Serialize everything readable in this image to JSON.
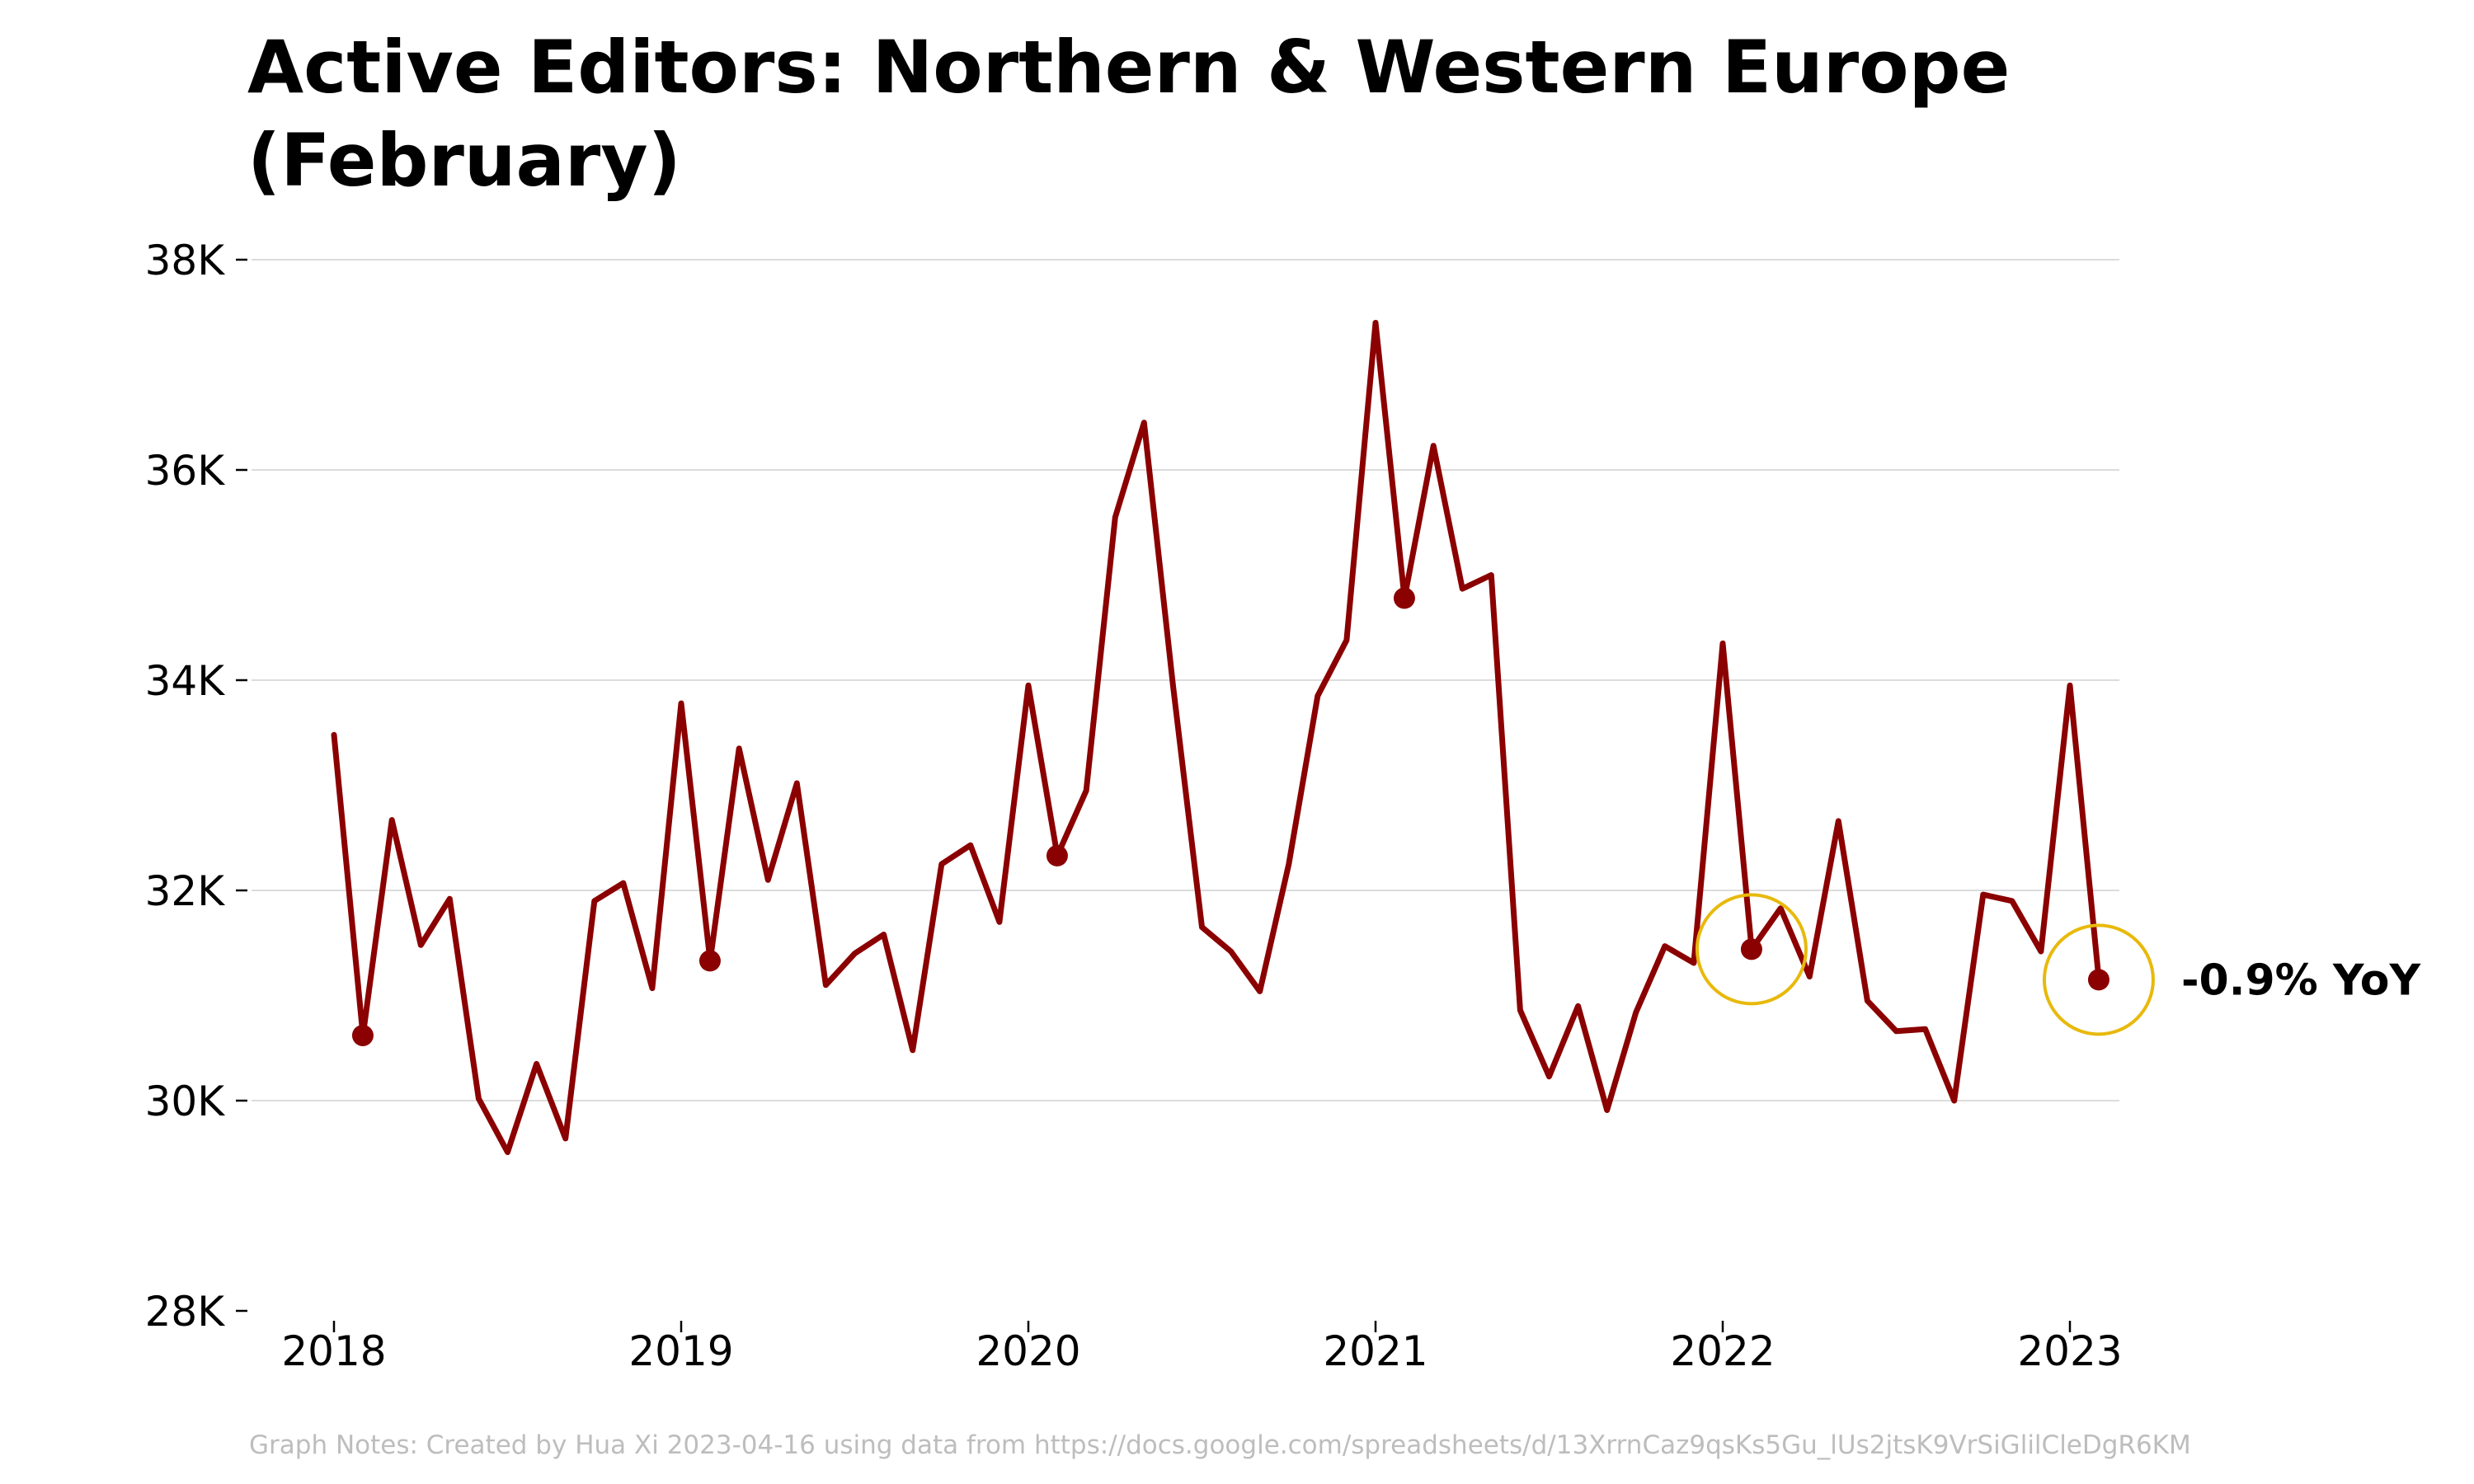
{
  "chart_data": {
    "type": "line",
    "title_lines": [
      "Active Editors: Northern & Western Europe",
      "(February)"
    ],
    "xlabel": "",
    "ylabel": "",
    "x_start": "2018-01",
    "x_ticks": [
      {
        "label": "2018",
        "value": 2018
      },
      {
        "label": "2019",
        "value": 2019
      },
      {
        "label": "2020",
        "value": 2020
      },
      {
        "label": "2021",
        "value": 2021
      },
      {
        "label": "2022",
        "value": 2022
      },
      {
        "label": "2023",
        "value": 2023
      }
    ],
    "y_ticks": [
      {
        "label": "28K",
        "value": 28000
      },
      {
        "label": "30K",
        "value": 30000
      },
      {
        "label": "32K",
        "value": 32000
      },
      {
        "label": "34K",
        "value": 34000
      },
      {
        "label": "36K",
        "value": 36000
      },
      {
        "label": "38K",
        "value": 38000
      }
    ],
    "ylim": [
      28000,
      38000
    ],
    "xlim": [
      2018,
      2023.17
    ],
    "grid": true,
    "series": [
      {
        "color": "#8b0000",
        "values": [
          33480,
          30620,
          32670,
          31480,
          31920,
          30020,
          29510,
          30350,
          29640,
          31900,
          32070,
          31070,
          33780,
          31330,
          33350,
          32100,
          33020,
          31100,
          31400,
          31580,
          30480,
          32250,
          32430,
          31700,
          33950,
          32330,
          32950,
          35550,
          36450,
          33950,
          31650,
          31420,
          31040,
          32250,
          33850,
          34380,
          37400,
          34780,
          36230,
          34870,
          35000,
          30860,
          30230,
          30900,
          29910,
          30840,
          31470,
          31310,
          34350,
          31440,
          31830,
          31180,
          32660,
          30950,
          30660,
          30680,
          30000,
          31960,
          31900,
          31420,
          33950,
          31150
        ]
      }
    ],
    "highlighted_points": [
      {
        "label": "Feb 2018",
        "x": 2018.083,
        "y": 30620
      },
      {
        "label": "Feb 2019",
        "x": 2019.083,
        "y": 31330
      },
      {
        "label": "Feb 2020",
        "x": 2020.083,
        "y": 32330
      },
      {
        "label": "Feb 2021",
        "x": 2021.083,
        "y": 34780
      },
      {
        "label": "Feb 2022",
        "x": 2022.083,
        "y": 31440,
        "ringed": true
      },
      {
        "label": "Feb 2023",
        "x": 2023.083,
        "y": 31150,
        "ringed": true
      }
    ],
    "annotation": {
      "text": "-0.9% YoY",
      "x": 2023.083,
      "y": 31150
    },
    "colors": {
      "line": "#8b0000",
      "ring": "#e8b90c",
      "grid": "#dcdcdc"
    },
    "footnote": "Graph Notes: Created by Hua Xi 2023-04-16 using data from https://docs.google.com/spreadsheets/d/13XrrnCaz9qsKs5Gu_lUs2jtsK9VrSiGlilCleDgR6KM"
  }
}
